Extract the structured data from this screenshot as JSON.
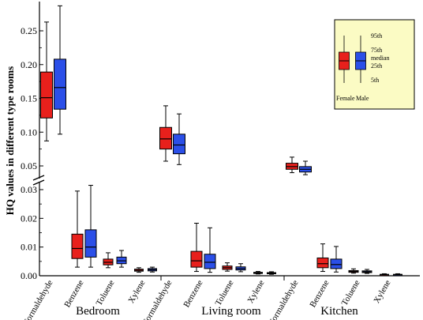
{
  "chart_data": {
    "type": "box",
    "title": "",
    "ylabel": "HQ values in different type rooms",
    "axis_break": true,
    "upper_ylim": [
      0.04,
      0.29
    ],
    "lower_ylim": [
      0.0,
      0.032
    ],
    "upper_ticks": [
      "0.05",
      "0.10",
      "0.15",
      "0.20",
      "0.25"
    ],
    "lower_ticks": [
      "0.00",
      "0.01",
      "0.02",
      "0.03"
    ],
    "groups": [
      "Bedroom",
      "Living room",
      "Kitchen"
    ],
    "pollutants": [
      "Formaldehyde",
      "Benzene",
      "Toluene",
      "Xylene"
    ],
    "series_names": [
      "Female",
      "Male"
    ],
    "colors": {
      "Female": "#e8201c",
      "Male": "#2b4fe8",
      "legend_bg": "#fbfbc4"
    },
    "legend_labels": [
      "95th",
      "75th",
      "median",
      "25th",
      "5th"
    ],
    "legend_series": [
      "Female",
      "Male"
    ],
    "boxes": [
      {
        "group": "Bedroom",
        "pollutant": "Formaldehyde",
        "sex": "Female",
        "p5": 0.087,
        "q1": 0.121,
        "median": 0.151,
        "q3": 0.189,
        "p95": 0.263
      },
      {
        "group": "Bedroom",
        "pollutant": "Formaldehyde",
        "sex": "Male",
        "p5": 0.097,
        "q1": 0.134,
        "median": 0.166,
        "q3": 0.208,
        "p95": 0.287
      },
      {
        "group": "Bedroom",
        "pollutant": "Benzene",
        "sex": "Female",
        "p5": 0.003,
        "q1": 0.006,
        "median": 0.0095,
        "q3": 0.0145,
        "p95": 0.0295
      },
      {
        "group": "Bedroom",
        "pollutant": "Benzene",
        "sex": "Male",
        "p5": 0.003,
        "q1": 0.0065,
        "median": 0.01,
        "q3": 0.016,
        "p95": 0.0315
      },
      {
        "group": "Bedroom",
        "pollutant": "Toluene",
        "sex": "Female",
        "p5": 0.0028,
        "q1": 0.0038,
        "median": 0.0047,
        "q3": 0.0058,
        "p95": 0.008
      },
      {
        "group": "Bedroom",
        "pollutant": "Toluene",
        "sex": "Male",
        "p5": 0.003,
        "q1": 0.0042,
        "median": 0.0052,
        "q3": 0.0065,
        "p95": 0.0088
      },
      {
        "group": "Bedroom",
        "pollutant": "Xylene",
        "sex": "Female",
        "p5": 0.0012,
        "q1": 0.0016,
        "median": 0.0019,
        "q3": 0.0023,
        "p95": 0.0028
      },
      {
        "group": "Bedroom",
        "pollutant": "Xylene",
        "sex": "Male",
        "p5": 0.0013,
        "q1": 0.0017,
        "median": 0.0021,
        "q3": 0.0025,
        "p95": 0.003
      },
      {
        "group": "Living room",
        "pollutant": "Formaldehyde",
        "sex": "Female",
        "p5": 0.057,
        "q1": 0.075,
        "median": 0.09,
        "q3": 0.107,
        "p95": 0.139
      },
      {
        "group": "Living room",
        "pollutant": "Formaldehyde",
        "sex": "Male",
        "p5": 0.052,
        "q1": 0.068,
        "median": 0.081,
        "q3": 0.097,
        "p95": 0.127
      },
      {
        "group": "Living room",
        "pollutant": "Benzene",
        "sex": "Female",
        "p5": 0.0015,
        "q1": 0.003,
        "median": 0.0052,
        "q3": 0.0085,
        "p95": 0.0183
      },
      {
        "group": "Living room",
        "pollutant": "Benzene",
        "sex": "Male",
        "p5": 0.0012,
        "q1": 0.0025,
        "median": 0.0047,
        "q3": 0.0075,
        "p95": 0.0167
      },
      {
        "group": "Living room",
        "pollutant": "Toluene",
        "sex": "Female",
        "p5": 0.0016,
        "q1": 0.0022,
        "median": 0.0028,
        "q3": 0.0034,
        "p95": 0.0045
      },
      {
        "group": "Living room",
        "pollutant": "Toluene",
        "sex": "Male",
        "p5": 0.0014,
        "q1": 0.002,
        "median": 0.0025,
        "q3": 0.0031,
        "p95": 0.0042
      },
      {
        "group": "Living room",
        "pollutant": "Xylene",
        "sex": "Female",
        "p5": 0.0006,
        "q1": 0.0008,
        "median": 0.001,
        "q3": 0.0012,
        "p95": 0.0015
      },
      {
        "group": "Living room",
        "pollutant": "Xylene",
        "sex": "Male",
        "p5": 0.0005,
        "q1": 0.0007,
        "median": 0.0009,
        "q3": 0.0011,
        "p95": 0.0014
      },
      {
        "group": "Kitchen",
        "pollutant": "Formaldehyde",
        "sex": "Female",
        "p5": 0.04,
        "q1": 0.045,
        "median": 0.049,
        "q3": 0.054,
        "p95": 0.063
      },
      {
        "group": "Kitchen",
        "pollutant": "Formaldehyde",
        "sex": "Male",
        "p5": 0.037,
        "q1": 0.041,
        "median": 0.045,
        "q3": 0.049,
        "p95": 0.057
      },
      {
        "group": "Kitchen",
        "pollutant": "Benzene",
        "sex": "Female",
        "p5": 0.0015,
        "q1": 0.0028,
        "median": 0.0042,
        "q3": 0.0062,
        "p95": 0.0111
      },
      {
        "group": "Kitchen",
        "pollutant": "Benzene",
        "sex": "Male",
        "p5": 0.0013,
        "q1": 0.0025,
        "median": 0.0039,
        "q3": 0.0058,
        "p95": 0.0102
      },
      {
        "group": "Kitchen",
        "pollutant": "Toluene",
        "sex": "Female",
        "p5": 0.0009,
        "q1": 0.0012,
        "median": 0.0015,
        "q3": 0.0018,
        "p95": 0.0024
      },
      {
        "group": "Kitchen",
        "pollutant": "Toluene",
        "sex": "Male",
        "p5": 0.0008,
        "q1": 0.0011,
        "median": 0.0014,
        "q3": 0.0017,
        "p95": 0.0022
      },
      {
        "group": "Kitchen",
        "pollutant": "Xylene",
        "sex": "Female",
        "p5": 0.0002,
        "q1": 0.0003,
        "median": 0.0004,
        "q3": 0.0005,
        "p95": 0.0007
      },
      {
        "group": "Kitchen",
        "pollutant": "Xylene",
        "sex": "Male",
        "p5": 0.0002,
        "q1": 0.0003,
        "median": 0.0004,
        "q3": 0.0005,
        "p95": 0.0007
      }
    ]
  }
}
